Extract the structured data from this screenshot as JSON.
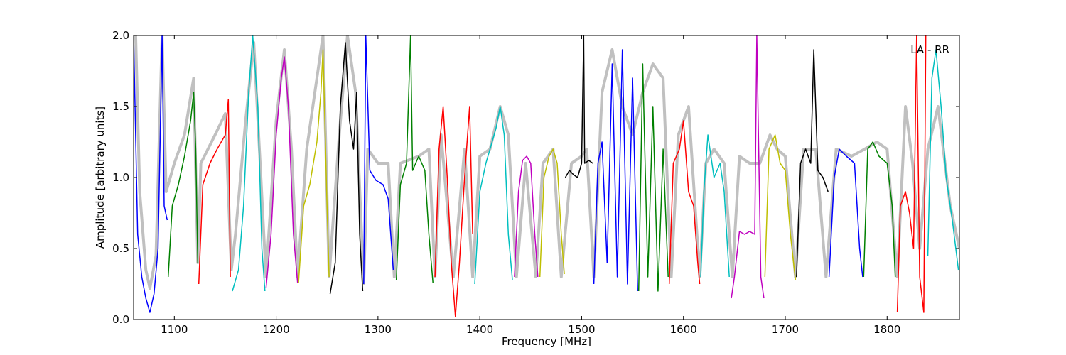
{
  "chart_data": {
    "type": "line",
    "title": "",
    "xlabel": "Frequency [MHz]",
    "ylabel": "Amplitude [arbitrary units]",
    "annotation": "LA - RR",
    "xlim": [
      1060,
      1871
    ],
    "ylim": [
      0.0,
      2.0
    ],
    "x_ticks": [
      1100,
      1200,
      1300,
      1400,
      1500,
      1600,
      1700,
      1800
    ],
    "x_tick_labels": [
      "1100",
      "1200",
      "1300",
      "1400",
      "1500",
      "1600",
      "1700",
      "1800"
    ],
    "y_ticks": [
      0.0,
      0.5,
      1.0,
      1.5,
      2.0
    ],
    "y_tick_labels": [
      "0.0",
      "0.5",
      "1.0",
      "1.5",
      "2.0"
    ],
    "grid": false,
    "background_series": {
      "color": "#c0c0c0",
      "description": "grey envelope",
      "points": [
        [
          1062,
          2.0
        ],
        [
          1066,
          0.9
        ],
        [
          1072,
          0.35
        ],
        [
          1076,
          0.22
        ],
        [
          1082,
          0.45
        ],
        [
          1088,
          2.0
        ],
        [
          1092,
          0.9
        ],
        [
          1100,
          1.1
        ],
        [
          1110,
          1.3
        ],
        [
          1119,
          1.7
        ],
        [
          1123,
          0.4
        ],
        [
          1126,
          1.1
        ],
        [
          1140,
          1.3
        ],
        [
          1150,
          1.45
        ],
        [
          1156,
          0.35
        ],
        [
          1160,
          0.6
        ],
        [
          1170,
          1.4
        ],
        [
          1178,
          1.95
        ],
        [
          1185,
          1.0
        ],
        [
          1190,
          0.3
        ],
        [
          1200,
          1.4
        ],
        [
          1208,
          1.9
        ],
        [
          1215,
          1.2
        ],
        [
          1221,
          0.3
        ],
        [
          1230,
          1.2
        ],
        [
          1246,
          2.0
        ],
        [
          1252,
          0.3
        ],
        [
          1262,
          1.3
        ],
        [
          1270,
          2.0
        ],
        [
          1278,
          1.6
        ],
        [
          1286,
          0.25
        ],
        [
          1290,
          1.2
        ],
        [
          1300,
          1.1
        ],
        [
          1310,
          1.1
        ],
        [
          1316,
          0.3
        ],
        [
          1322,
          1.1
        ],
        [
          1340,
          1.15
        ],
        [
          1350,
          1.2
        ],
        [
          1356,
          0.3
        ],
        [
          1362,
          1.3
        ],
        [
          1374,
          0.3
        ],
        [
          1385,
          1.2
        ],
        [
          1393,
          0.3
        ],
        [
          1400,
          1.15
        ],
        [
          1410,
          1.2
        ],
        [
          1420,
          1.5
        ],
        [
          1428,
          1.3
        ],
        [
          1436,
          0.3
        ],
        [
          1445,
          1.1
        ],
        [
          1455,
          0.3
        ],
        [
          1462,
          1.1
        ],
        [
          1472,
          1.2
        ],
        [
          1480,
          0.3
        ],
        [
          1490,
          1.1
        ],
        [
          1500,
          1.15
        ],
        [
          1505,
          1.2
        ],
        [
          1512,
          0.3
        ],
        [
          1520,
          1.6
        ],
        [
          1530,
          1.9
        ],
        [
          1540,
          1.5
        ],
        [
          1550,
          1.3
        ],
        [
          1560,
          1.6
        ],
        [
          1570,
          1.8
        ],
        [
          1580,
          1.7
        ],
        [
          1588,
          0.3
        ],
        [
          1595,
          1.3
        ],
        [
          1605,
          1.5
        ],
        [
          1616,
          0.3
        ],
        [
          1622,
          1.1
        ],
        [
          1630,
          1.2
        ],
        [
          1640,
          1.1
        ],
        [
          1648,
          0.3
        ],
        [
          1655,
          1.15
        ],
        [
          1665,
          1.1
        ],
        [
          1675,
          1.1
        ],
        [
          1685,
          1.3
        ],
        [
          1692,
          1.2
        ],
        [
          1700,
          1.15
        ],
        [
          1710,
          0.3
        ],
        [
          1718,
          1.2
        ],
        [
          1730,
          1.2
        ],
        [
          1740,
          0.3
        ],
        [
          1750,
          1.2
        ],
        [
          1765,
          1.15
        ],
        [
          1778,
          1.2
        ],
        [
          1790,
          1.25
        ],
        [
          1800,
          1.2
        ],
        [
          1810,
          0.3
        ],
        [
          1818,
          1.5
        ],
        [
          1825,
          1.1
        ],
        [
          1832,
          0.5
        ],
        [
          1840,
          1.2
        ],
        [
          1850,
          1.5
        ],
        [
          1862,
          0.8
        ],
        [
          1871,
          0.5
        ]
      ]
    },
    "series": [
      {
        "color": "#0000ff",
        "points": [
          [
            1060,
            2.0
          ],
          [
            1064,
            0.6
          ],
          [
            1068,
            0.3
          ],
          [
            1072,
            0.15
          ],
          [
            1076,
            0.05
          ],
          [
            1080,
            0.18
          ],
          [
            1084,
            0.5
          ],
          [
            1088,
            2.0
          ],
          [
            1090,
            0.8
          ],
          [
            1093,
            0.7
          ]
        ]
      },
      {
        "color": "#008000",
        "points": [
          [
            1094,
            0.3
          ],
          [
            1098,
            0.8
          ],
          [
            1104,
            0.95
          ],
          [
            1110,
            1.15
          ],
          [
            1116,
            1.4
          ],
          [
            1119,
            1.6
          ],
          [
            1121,
            1.2
          ],
          [
            1123,
            0.4
          ]
        ]
      },
      {
        "color": "#ff0000",
        "points": [
          [
            1124,
            0.25
          ],
          [
            1128,
            0.95
          ],
          [
            1135,
            1.1
          ],
          [
            1142,
            1.2
          ],
          [
            1150,
            1.3
          ],
          [
            1153,
            1.55
          ],
          [
            1155,
            0.3
          ]
        ]
      },
      {
        "color": "#00bfbf",
        "points": [
          [
            1157,
            0.2
          ],
          [
            1163,
            0.35
          ],
          [
            1168,
            0.8
          ],
          [
            1173,
            1.6
          ],
          [
            1177,
            2.0
          ],
          [
            1182,
            1.5
          ],
          [
            1186,
            0.5
          ],
          [
            1189,
            0.2
          ]
        ]
      },
      {
        "color": "#bf00bf",
        "points": [
          [
            1190,
            0.22
          ],
          [
            1195,
            0.6
          ],
          [
            1200,
            1.3
          ],
          [
            1205,
            1.7
          ],
          [
            1208,
            1.85
          ],
          [
            1212,
            1.5
          ],
          [
            1217,
            0.6
          ],
          [
            1221,
            0.26
          ]
        ]
      },
      {
        "color": "#bfbf00",
        "points": [
          [
            1222,
            0.26
          ],
          [
            1227,
            0.8
          ],
          [
            1233,
            0.95
          ],
          [
            1240,
            1.25
          ],
          [
            1244,
            1.6
          ],
          [
            1246,
            1.9
          ],
          [
            1250,
            0.8
          ],
          [
            1252,
            0.3
          ]
        ]
      },
      {
        "color": "#000000",
        "points": [
          [
            1253,
            0.18
          ],
          [
            1258,
            0.4
          ],
          [
            1263,
            1.5
          ],
          [
            1268,
            1.95
          ],
          [
            1272,
            1.4
          ],
          [
            1276,
            1.2
          ],
          [
            1279,
            1.6
          ],
          [
            1282,
            0.6
          ],
          [
            1285,
            0.2
          ]
        ]
      },
      {
        "color": "#0000ff",
        "points": [
          [
            1286,
            0.25
          ],
          [
            1288,
            2.0
          ],
          [
            1292,
            1.05
          ],
          [
            1298,
            0.98
          ],
          [
            1305,
            0.95
          ],
          [
            1310,
            0.85
          ],
          [
            1315,
            0.35
          ]
        ]
      },
      {
        "color": "#008000",
        "points": [
          [
            1318,
            0.28
          ],
          [
            1322,
            0.95
          ],
          [
            1328,
            1.1
          ],
          [
            1332,
            2.0
          ],
          [
            1334,
            1.05
          ],
          [
            1340,
            1.15
          ],
          [
            1346,
            1.05
          ],
          [
            1350,
            0.6
          ],
          [
            1354,
            0.26
          ]
        ]
      },
      {
        "color": "#ff0000",
        "points": [
          [
            1356,
            0.3
          ],
          [
            1360,
            1.2
          ],
          [
            1364,
            1.5
          ],
          [
            1368,
            1.0
          ],
          [
            1372,
            0.4
          ],
          [
            1376,
            0.02
          ],
          [
            1380,
            0.4
          ],
          [
            1385,
            1.0
          ],
          [
            1390,
            1.5
          ],
          [
            1393,
            0.6
          ]
        ]
      },
      {
        "color": "#00bfbf",
        "points": [
          [
            1395,
            0.25
          ],
          [
            1400,
            0.9
          ],
          [
            1406,
            1.1
          ],
          [
            1410,
            1.2
          ],
          [
            1416,
            1.35
          ],
          [
            1420,
            1.5
          ],
          [
            1424,
            1.3
          ],
          [
            1428,
            0.6
          ],
          [
            1432,
            0.28
          ]
        ]
      },
      {
        "color": "#bf00bf",
        "points": [
          [
            1434,
            0.3
          ],
          [
            1438,
            0.9
          ],
          [
            1442,
            1.12
          ],
          [
            1446,
            1.15
          ],
          [
            1450,
            1.1
          ],
          [
            1454,
            0.6
          ],
          [
            1457,
            0.3
          ]
        ]
      },
      {
        "color": "#bfbf00",
        "points": [
          [
            1459,
            0.3
          ],
          [
            1463,
            1.0
          ],
          [
            1468,
            1.15
          ],
          [
            1472,
            1.2
          ],
          [
            1476,
            1.1
          ],
          [
            1480,
            0.6
          ],
          [
            1483,
            0.32
          ]
        ]
      },
      {
        "color": "#000000",
        "points": [
          [
            1484,
            1.0
          ],
          [
            1488,
            1.05
          ],
          [
            1492,
            1.02
          ],
          [
            1496,
            1.0
          ],
          [
            1500,
            1.1
          ],
          [
            1502,
            2.0
          ],
          [
            1503,
            1.1
          ],
          [
            1507,
            1.12
          ],
          [
            1511,
            1.1
          ]
        ]
      },
      {
        "color": "#0000ff",
        "points": [
          [
            1512,
            0.25
          ],
          [
            1516,
            1.1
          ],
          [
            1520,
            1.25
          ],
          [
            1525,
            0.4
          ],
          [
            1530,
            1.8
          ],
          [
            1535,
            0.3
          ],
          [
            1540,
            1.9
          ],
          [
            1545,
            0.25
          ],
          [
            1550,
            1.7
          ],
          [
            1555,
            0.2
          ]
        ]
      },
      {
        "color": "#008000",
        "points": [
          [
            1556,
            0.2
          ],
          [
            1560,
            1.8
          ],
          [
            1565,
            0.3
          ],
          [
            1570,
            1.5
          ],
          [
            1575,
            0.2
          ],
          [
            1580,
            1.2
          ],
          [
            1585,
            0.3
          ]
        ]
      },
      {
        "color": "#ff0000",
        "points": [
          [
            1586,
            0.25
          ],
          [
            1590,
            1.1
          ],
          [
            1596,
            1.2
          ],
          [
            1600,
            1.4
          ],
          [
            1605,
            0.9
          ],
          [
            1610,
            0.8
          ],
          [
            1614,
            0.4
          ],
          [
            1616,
            0.25
          ]
        ]
      },
      {
        "color": "#00bfbf",
        "points": [
          [
            1617,
            0.3
          ],
          [
            1620,
            0.9
          ],
          [
            1624,
            1.3
          ],
          [
            1630,
            1.0
          ],
          [
            1636,
            1.1
          ],
          [
            1640,
            0.9
          ],
          [
            1645,
            0.3
          ]
        ]
      },
      {
        "color": "#bf00bf",
        "points": [
          [
            1647,
            0.15
          ],
          [
            1650,
            0.3
          ],
          [
            1655,
            0.62
          ],
          [
            1660,
            0.6
          ],
          [
            1665,
            0.62
          ],
          [
            1670,
            0.6
          ],
          [
            1672,
            2.0
          ],
          [
            1676,
            0.3
          ],
          [
            1679,
            0.15
          ]
        ]
      },
      {
        "color": "#bfbf00",
        "points": [
          [
            1680,
            0.3
          ],
          [
            1684,
            1.2
          ],
          [
            1690,
            1.3
          ],
          [
            1695,
            1.1
          ],
          [
            1700,
            1.05
          ],
          [
            1705,
            0.6
          ],
          [
            1710,
            0.28
          ]
        ]
      },
      {
        "color": "#000000",
        "points": [
          [
            1711,
            0.3
          ],
          [
            1715,
            1.1
          ],
          [
            1720,
            1.2
          ],
          [
            1725,
            1.1
          ],
          [
            1728,
            1.9
          ],
          [
            1732,
            1.05
          ],
          [
            1737,
            1.0
          ],
          [
            1742,
            0.9
          ]
        ]
      },
      {
        "color": "#0000ff",
        "points": [
          [
            1743,
            0.3
          ],
          [
            1748,
            1.0
          ],
          [
            1753,
            1.2
          ],
          [
            1760,
            1.15
          ],
          [
            1768,
            1.1
          ],
          [
            1773,
            0.5
          ],
          [
            1776,
            0.3
          ]
        ]
      },
      {
        "color": "#008000",
        "points": [
          [
            1777,
            0.3
          ],
          [
            1781,
            1.2
          ],
          [
            1786,
            1.25
          ],
          [
            1792,
            1.15
          ],
          [
            1800,
            1.1
          ],
          [
            1805,
            0.8
          ],
          [
            1808,
            0.3
          ]
        ]
      },
      {
        "color": "#ff0000",
        "points": [
          [
            1810,
            0.05
          ],
          [
            1813,
            0.8
          ],
          [
            1818,
            0.9
          ],
          [
            1822,
            0.75
          ],
          [
            1826,
            0.5
          ],
          [
            1829,
            2.0
          ],
          [
            1832,
            0.3
          ],
          [
            1836,
            0.05
          ],
          [
            1838,
            2.0
          ]
        ]
      },
      {
        "color": "#00bfbf",
        "points": [
          [
            1840,
            0.45
          ],
          [
            1844,
            1.7
          ],
          [
            1848,
            1.9
          ],
          [
            1853,
            1.5
          ],
          [
            1858,
            1.0
          ],
          [
            1864,
            0.7
          ],
          [
            1870,
            0.35
          ]
        ]
      }
    ]
  }
}
